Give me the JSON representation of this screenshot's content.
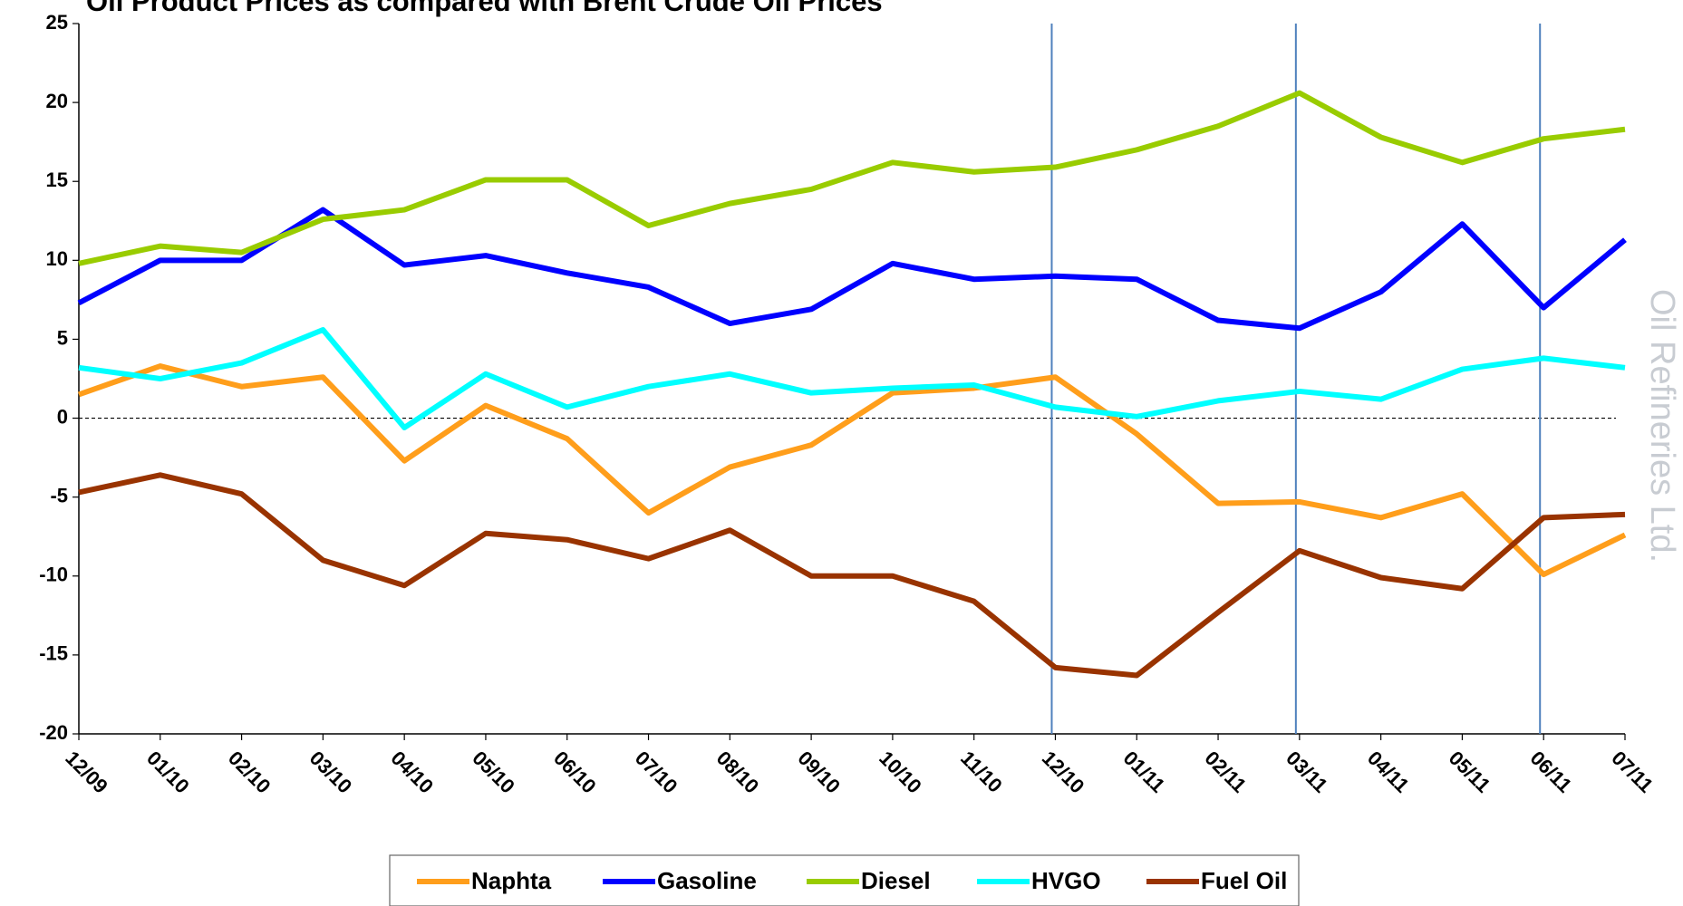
{
  "chart_data": {
    "type": "line",
    "title": "Oil Product Prices as compared with Brent Crude Oil Prices",
    "watermark": "Oil Refineries Ltd.",
    "categories": [
      "12/09",
      "01/10",
      "02/10",
      "03/10",
      "04/10",
      "05/10",
      "06/10",
      "07/10",
      "08/10",
      "09/10",
      "10/10",
      "11/10",
      "12/10",
      "01/11",
      "02/11",
      "03/11",
      "04/11",
      "05/11",
      "06/11",
      "07/11"
    ],
    "series": [
      {
        "name": "Naphta",
        "color": "#ff9e1b",
        "values": [
          1.5,
          3.3,
          2.0,
          2.6,
          -2.7,
          0.8,
          -1.3,
          -6.0,
          -3.1,
          -1.7,
          1.6,
          1.9,
          2.6,
          -1.0,
          -5.4,
          -5.3,
          -6.3,
          -4.8,
          -9.9,
          -7.4
        ]
      },
      {
        "name": "Gasoline",
        "color": "#0000ff",
        "values": [
          7.3,
          10.0,
          10.0,
          13.2,
          9.7,
          10.3,
          9.2,
          8.3,
          6.0,
          6.9,
          9.8,
          8.8,
          9.0,
          8.8,
          6.2,
          5.7,
          8.0,
          12.3,
          7.0,
          11.3
        ]
      },
      {
        "name": "Diesel",
        "color": "#99cc00",
        "values": [
          9.8,
          10.9,
          10.5,
          12.6,
          13.2,
          15.1,
          15.1,
          12.2,
          13.6,
          14.5,
          16.2,
          15.6,
          15.9,
          17.0,
          18.5,
          20.6,
          17.8,
          16.2,
          17.7,
          18.3
        ]
      },
      {
        "name": "HVGO",
        "color": "#00ffff",
        "values": [
          3.2,
          2.5,
          3.5,
          5.6,
          -0.6,
          2.8,
          0.7,
          2.0,
          2.8,
          1.6,
          1.9,
          2.1,
          0.7,
          0.1,
          1.1,
          1.7,
          1.2,
          3.1,
          3.8,
          3.2
        ]
      },
      {
        "name": "Fuel Oil",
        "color": "#993300",
        "values": [
          -4.7,
          -3.6,
          -4.8,
          -9.0,
          -10.6,
          -7.3,
          -7.7,
          -8.9,
          -7.1,
          -10.0,
          -10.0,
          -11.6,
          -15.8,
          -16.3,
          -12.3,
          -8.4,
          -10.1,
          -10.8,
          -6.3,
          -6.1
        ]
      }
    ],
    "reference_lines_at": [
      12,
      15,
      18
    ],
    "reference_line_color": "#4f81bd",
    "ylim": [
      -20,
      25
    ],
    "yticks": [
      -20,
      -15,
      -10,
      -5,
      0,
      5,
      10,
      15,
      20,
      25
    ],
    "grid": false,
    "legend": "bottom"
  }
}
